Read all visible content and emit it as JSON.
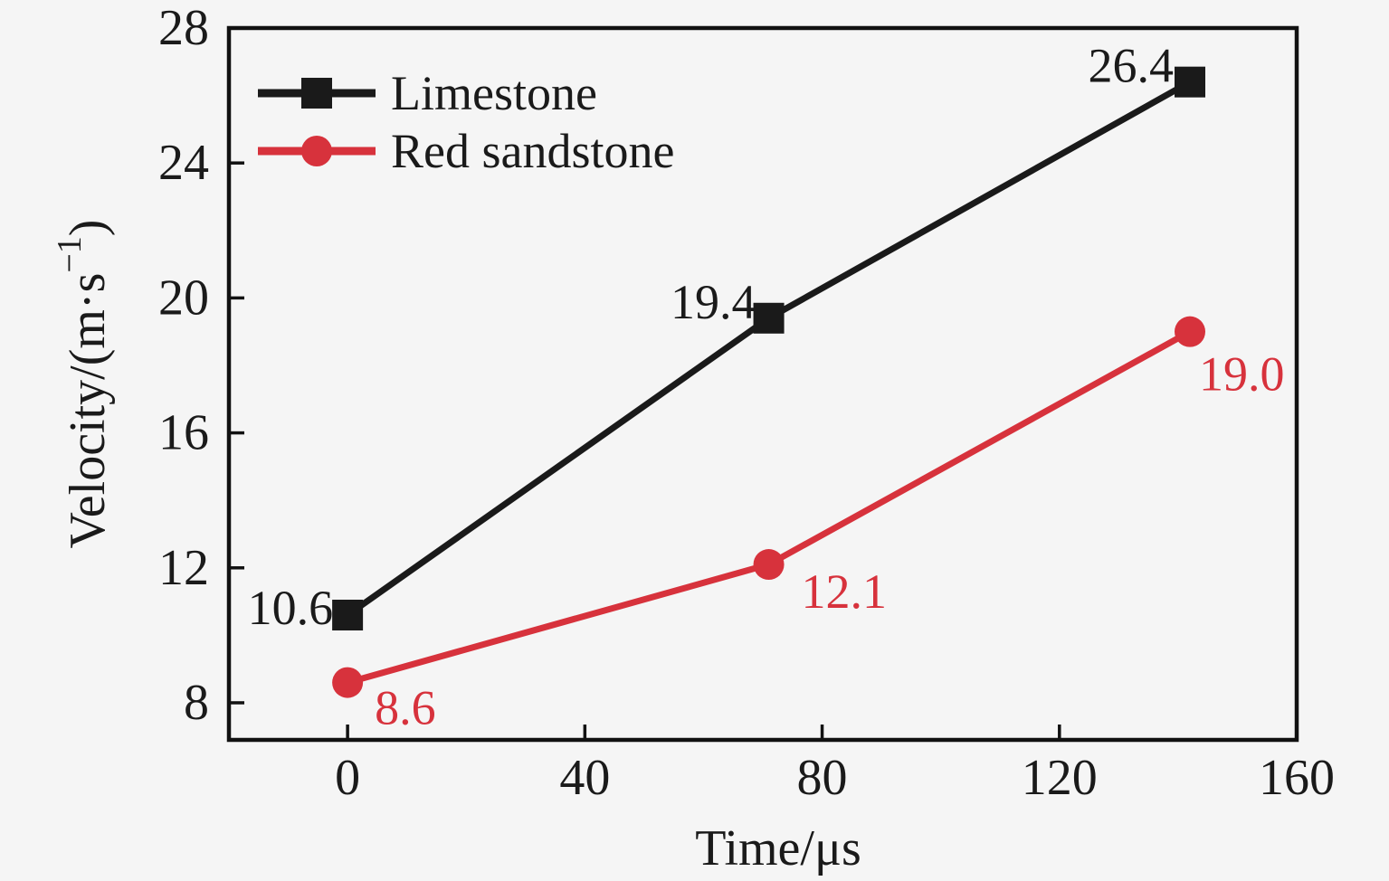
{
  "figure": {
    "background": "#f5f5f5",
    "axis_color": "#111111",
    "text_color": "#1a1a1a"
  },
  "chart_data": {
    "type": "line",
    "title": "",
    "xlabel": "Time/μs",
    "ylabel": "Velocity/(m·s⁻¹)",
    "ylabel_parts": {
      "prefix": "Velocity/(m·s",
      "superscript": "−1",
      "suffix": ")"
    },
    "xlim": [
      -20,
      160
    ],
    "ylim": [
      6.9,
      28
    ],
    "x_ticks": [
      0,
      40,
      80,
      120,
      160
    ],
    "y_ticks": [
      8,
      12,
      16,
      20,
      24,
      28
    ],
    "grid": false,
    "legend_position": "top-left-inside",
    "series": [
      {
        "name": "Limestone",
        "color": "#1a1a1a",
        "marker": "square",
        "x": [
          0,
          71,
          142
        ],
        "y": [
          10.6,
          19.4,
          26.4
        ],
        "labels": [
          "10.6",
          "19.4",
          "26.4"
        ],
        "label_offsets": [
          {
            "dx": -16,
            "dy": -8,
            "anchor": "end"
          },
          {
            "dx": -14,
            "dy": -18,
            "anchor": "end"
          },
          {
            "dx": -18,
            "dy": -18,
            "anchor": "end"
          }
        ]
      },
      {
        "name": "Red sandstone",
        "color": "#d7323c",
        "marker": "circle",
        "x": [
          0,
          71,
          142
        ],
        "y": [
          8.6,
          12.1,
          19.0
        ],
        "labels": [
          "8.6",
          "12.1",
          "19.0"
        ],
        "label_offsets": [
          {
            "dx": 30,
            "dy": 28,
            "anchor": "start"
          },
          {
            "dx": 36,
            "dy": 30,
            "anchor": "start"
          },
          {
            "dx": 10,
            "dy": 47,
            "anchor": "start"
          }
        ]
      }
    ]
  }
}
